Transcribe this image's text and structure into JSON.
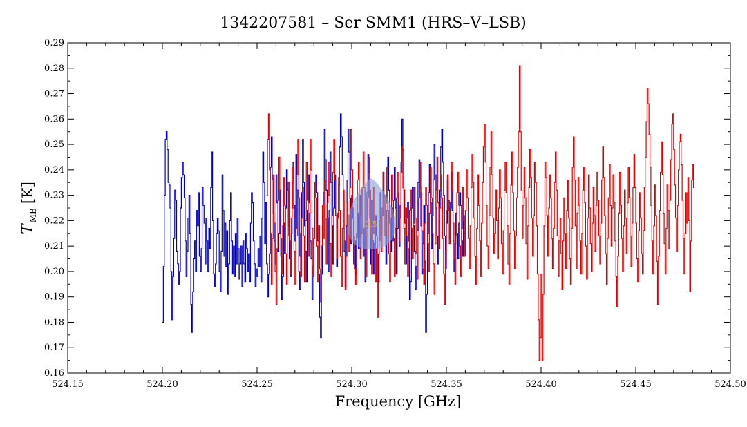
{
  "chart_data": {
    "type": "line",
    "title": "1342207581 – Ser SMM1 (HRS–V–LSB)",
    "xlabel": "Frequency [GHz]",
    "ylabel": {
      "symbol": "T",
      "subscript": "MB",
      "unit": "[K]"
    },
    "xlim": [
      524.15,
      524.5
    ],
    "ylim": [
      0.16,
      0.29
    ],
    "x_ticks": [
      "524.15",
      "524.20",
      "524.25",
      "524.30",
      "524.35",
      "524.40",
      "524.45",
      "524.50"
    ],
    "y_ticks": [
      "0.16",
      "0.17",
      "0.18",
      "0.19",
      "0.20",
      "0.21",
      "0.22",
      "0.23",
      "0.24",
      "0.25",
      "0.26",
      "0.27",
      "0.28",
      "0.29"
    ],
    "grid": false,
    "step": true,
    "series": [
      {
        "color": "#0000c8",
        "x_start": 524.2,
        "x_step": 0.0005,
        "values": [
          0.18,
          0.202,
          0.23,
          0.252,
          0.255,
          0.248,
          0.235,
          0.234,
          0.225,
          0.2,
          0.181,
          0.198,
          0.213,
          0.232,
          0.228,
          0.208,
          0.203,
          0.195,
          0.2,
          0.225,
          0.237,
          0.243,
          0.238,
          0.229,
          0.212,
          0.198,
          0.208,
          0.221,
          0.23,
          0.215,
          0.187,
          0.176,
          0.192,
          0.205,
          0.212,
          0.2,
          0.224,
          0.218,
          0.231,
          0.206,
          0.2,
          0.209,
          0.233,
          0.226,
          0.219,
          0.203,
          0.221,
          0.212,
          0.2,
          0.217,
          0.209,
          0.233,
          0.247,
          0.22,
          0.199,
          0.194,
          0.203,
          0.215,
          0.221,
          0.216,
          0.2,
          0.192,
          0.208,
          0.238,
          0.224,
          0.206,
          0.219,
          0.202,
          0.216,
          0.191,
          0.203,
          0.22,
          0.231,
          0.212,
          0.199,
          0.21,
          0.198,
          0.215,
          0.203,
          0.221,
          0.209,
          0.197,
          0.203,
          0.21,
          0.194,
          0.212,
          0.203,
          0.196,
          0.215,
          0.209,
          0.2,
          0.207,
          0.196,
          0.219,
          0.231,
          0.227,
          0.212,
          0.203,
          0.194,
          0.201,
          0.198,
          0.209,
          0.202,
          0.214,
          0.196,
          0.221,
          0.247,
          0.235,
          0.211,
          0.227,
          0.203,
          0.19,
          0.199,
          0.207,
          0.241,
          0.253,
          0.236,
          0.223,
          0.212,
          0.203,
          0.238,
          0.227,
          0.208,
          0.215,
          0.232,
          0.206,
          0.189,
          0.198,
          0.219,
          0.207,
          0.225,
          0.24,
          0.232,
          0.218,
          0.205,
          0.198,
          0.215,
          0.235,
          0.243,
          0.226,
          0.212,
          0.246,
          0.232,
          0.214,
          0.2,
          0.193,
          0.215,
          0.231,
          0.252,
          0.235,
          0.218,
          0.208,
          0.196,
          0.224,
          0.238,
          0.227,
          0.212,
          0.205,
          0.189,
          0.202,
          0.213,
          0.23,
          0.238,
          0.231,
          0.212,
          0.199,
          0.182,
          0.174,
          0.199,
          0.218,
          0.231,
          0.256,
          0.244,
          0.232,
          0.221,
          0.2,
          0.224,
          0.247,
          0.235,
          0.218,
          0.203,
          0.225,
          0.238,
          0.222,
          0.202,
          0.221,
          0.234,
          0.249,
          0.262,
          0.253,
          0.238,
          0.228,
          0.208,
          0.194,
          0.218,
          0.236,
          0.256,
          0.247,
          0.229,
          0.211,
          0.23,
          0.221,
          0.203,
          0.212,
          0.199,
          0.215,
          0.223,
          0.209,
          0.23,
          0.213,
          0.232,
          0.224,
          0.206,
          0.217,
          0.196,
          0.214,
          0.231,
          0.246,
          0.239,
          0.221,
          0.203,
          0.228,
          0.212,
          0.199,
          0.211,
          0.222,
          0.214,
          0.196,
          0.207,
          0.22,
          0.231,
          0.214,
          0.222,
          0.239,
          0.23,
          0.216,
          0.203,
          0.224,
          0.245,
          0.232,
          0.219,
          0.208,
          0.225,
          0.212,
          0.228,
          0.241,
          0.225,
          0.199,
          0.217,
          0.231,
          0.21,
          0.221,
          0.243,
          0.26,
          0.248,
          0.232,
          0.219,
          0.203,
          0.221,
          0.227,
          0.212,
          0.189,
          0.196,
          0.225,
          0.233,
          0.218,
          0.208,
          0.193,
          0.202,
          0.216,
          0.235,
          0.244,
          0.233,
          0.218,
          0.199,
          0.211,
          0.226,
          0.204,
          0.176,
          0.191,
          0.215,
          0.231,
          0.242,
          0.227,
          0.209,
          0.222,
          0.236,
          0.25,
          0.238,
          0.225,
          0.214,
          0.203,
          0.22,
          0.232,
          0.249,
          0.256,
          0.243,
          0.23,
          0.214,
          0.201,
          0.219,
          0.236,
          0.228,
          0.213,
          0.225,
          0.239,
          0.224,
          0.212,
          0.2,
          0.211,
          0.223,
          0.215,
          0.205,
          0.219,
          0.231,
          0.226,
          0.212,
          0.206,
          0.222,
          0.215,
          0.207
        ]
      },
      {
        "color": "#e00000",
        "x_start": 524.255,
        "x_step": 0.0005,
        "values": [
          0.23,
          0.252,
          0.262,
          0.24,
          0.215,
          0.195,
          0.213,
          0.238,
          0.219,
          0.2,
          0.187,
          0.209,
          0.228,
          0.245,
          0.232,
          0.213,
          0.199,
          0.218,
          0.237,
          0.226,
          0.207,
          0.195,
          0.214,
          0.235,
          0.212,
          0.199,
          0.221,
          0.241,
          0.225,
          0.208,
          0.195,
          0.217,
          0.238,
          0.252,
          0.229,
          0.206,
          0.198,
          0.221,
          0.233,
          0.214,
          0.196,
          0.22,
          0.243,
          0.228,
          0.206,
          0.223,
          0.252,
          0.24,
          0.217,
          0.198,
          0.213,
          0.235,
          0.229,
          0.21,
          0.196,
          0.218,
          0.201,
          0.188,
          0.21,
          0.226,
          0.213,
          0.236,
          0.221,
          0.203,
          0.227,
          0.243,
          0.23,
          0.211,
          0.198,
          0.222,
          0.239,
          0.252,
          0.236,
          0.222,
          0.205,
          0.223,
          0.237,
          0.224,
          0.206,
          0.194,
          0.217,
          0.232,
          0.212,
          0.193,
          0.206,
          0.227,
          0.222,
          0.208,
          0.233,
          0.256,
          0.24,
          0.225,
          0.214,
          0.201,
          0.195,
          0.213,
          0.236,
          0.243,
          0.222,
          0.205,
          0.215,
          0.233,
          0.247,
          0.233,
          0.214,
          0.198,
          0.217,
          0.229,
          0.245,
          0.232,
          0.213,
          0.199,
          0.215,
          0.233,
          0.215,
          0.196,
          0.209,
          0.182,
          0.196,
          0.212,
          0.221,
          0.208,
          0.225,
          0.239,
          0.229,
          0.214,
          0.227,
          0.241,
          0.224,
          0.207,
          0.196,
          0.221,
          0.238,
          0.228,
          0.213,
          0.198,
          0.217,
          0.229,
          0.239,
          0.227,
          0.212,
          0.226,
          0.239,
          0.249,
          0.233,
          0.217,
          0.203,
          0.225,
          0.214,
          0.198,
          0.209,
          0.224,
          0.232,
          0.217,
          0.205,
          0.219,
          0.233,
          0.221,
          0.207,
          0.197,
          0.214,
          0.229,
          0.243,
          0.231,
          0.216,
          0.201,
          0.195,
          0.219,
          0.233,
          0.226,
          0.211,
          0.2,
          0.223,
          0.241,
          0.229,
          0.215,
          0.203,
          0.191,
          0.211,
          0.232,
          0.245,
          0.227,
          0.209,
          0.225,
          0.238,
          0.229,
          0.213,
          0.199,
          0.187,
          0.208,
          0.224,
          0.238,
          0.224,
          0.211,
          0.227,
          0.243,
          0.232,
          0.219,
          0.205,
          0.195,
          0.214,
          0.231,
          0.239,
          0.226,
          0.21,
          0.198,
          0.217,
          0.233,
          0.22,
          0.206,
          0.224,
          0.24,
          0.229,
          0.213,
          0.201,
          0.218,
          0.233,
          0.246,
          0.235,
          0.221,
          0.206,
          0.195,
          0.217,
          0.238,
          0.226,
          0.212,
          0.198,
          0.219,
          0.235,
          0.249,
          0.258,
          0.243,
          0.226,
          0.21,
          0.201,
          0.222,
          0.241,
          0.255,
          0.238,
          0.221,
          0.207,
          0.215,
          0.232,
          0.22,
          0.205,
          0.225,
          0.24,
          0.229,
          0.211,
          0.199,
          0.216,
          0.232,
          0.243,
          0.231,
          0.218,
          0.203,
          0.195,
          0.215,
          0.234,
          0.247,
          0.231,
          0.216,
          0.201,
          0.214,
          0.229,
          0.241,
          0.255,
          0.281,
          0.255,
          0.232,
          0.213,
          0.226,
          0.241,
          0.229,
          0.211,
          0.197,
          0.218,
          0.233,
          0.248,
          0.237,
          0.221,
          0.206,
          0.222,
          0.243,
          0.235,
          0.218,
          0.199,
          0.181,
          0.165,
          0.174,
          0.199,
          0.165,
          0.191,
          0.218,
          0.243,
          0.237,
          0.222,
          0.206,
          0.225,
          0.238,
          0.229,
          0.213,
          0.201,
          0.217,
          0.235,
          0.247,
          0.232,
          0.214,
          0.198,
          0.212,
          0.221,
          0.207,
          0.193,
          0.212,
          0.229,
          0.215,
          0.201,
          0.224,
          0.236,
          0.221,
          0.205,
          0.195,
          0.217,
          0.241,
          0.253,
          0.236,
          0.218,
          0.201,
          0.223,
          0.237,
          0.226,
          0.212,
          0.199,
          0.215,
          0.232,
          0.241,
          0.227,
          0.21,
          0.197,
          0.221,
          0.238,
          0.225,
          0.211,
          0.2,
          0.219,
          0.233,
          0.222,
          0.208,
          0.226,
          0.239,
          0.228,
          0.214,
          0.203,
          0.219,
          0.236,
          0.249,
          0.237,
          0.222,
          0.207,
          0.195,
          0.213,
          0.229,
          0.242,
          0.226,
          0.21,
          0.225,
          0.238,
          0.227,
          0.212,
          0.198,
          0.186,
          0.206,
          0.223,
          0.239,
          0.226,
          0.213,
          0.2,
          0.218,
          0.232,
          0.221,
          0.207,
          0.227,
          0.241,
          0.229,
          0.214,
          0.202,
          0.219,
          0.233,
          0.246,
          0.233,
          0.219,
          0.205,
          0.196,
          0.216,
          0.231,
          0.221,
          0.207,
          0.199,
          0.216,
          0.233,
          0.245,
          0.259,
          0.272,
          0.266,
          0.254,
          0.241,
          0.226,
          0.212,
          0.199,
          0.218,
          0.234,
          0.222,
          0.204,
          0.187,
          0.206,
          0.224,
          0.239,
          0.251,
          0.238,
          0.223,
          0.211,
          0.199,
          0.217,
          0.234,
          0.224,
          0.209,
          0.228,
          0.244,
          0.258,
          0.262,
          0.248,
          0.234,
          0.221,
          0.208,
          0.226,
          0.24,
          0.251,
          0.254,
          0.242,
          0.228,
          0.213,
          0.199,
          0.215,
          0.231,
          0.219,
          0.237,
          0.22,
          0.192,
          0.212,
          0.236,
          0.242,
          0.233
        ]
      }
    ]
  },
  "overlay": {
    "fill_color": "#8a9fd6",
    "label": "0.5"
  }
}
